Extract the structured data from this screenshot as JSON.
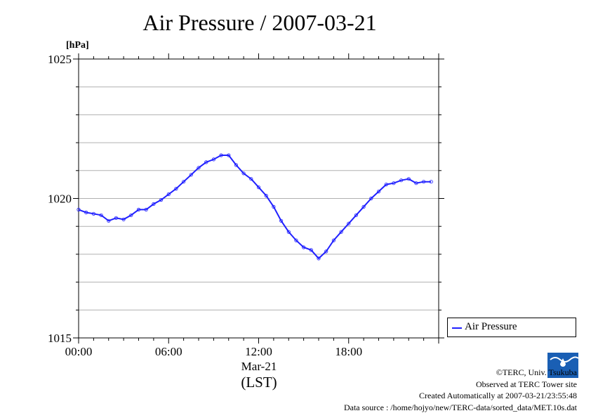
{
  "chart_data": {
    "type": "line",
    "title": "Air Pressure / 2007-03-21",
    "y_unit": "[hPa]",
    "ylim": [
      1015,
      1025
    ],
    "y_ticks": [
      1015,
      1020,
      1025
    ],
    "xlim_hours": [
      0,
      24
    ],
    "x_ticks": [
      {
        "hour": 0,
        "label": "00:00"
      },
      {
        "hour": 6,
        "label": "06:00"
      },
      {
        "hour": 12,
        "label": "12:00"
      },
      {
        "hour": 18,
        "label": "18:00"
      }
    ],
    "x_sublabel": "Mar-21",
    "x_unit": "(LST)",
    "grid": true,
    "legend_position": "right",
    "series": [
      {
        "name": "Air Pressure",
        "color": "#2020ff",
        "x_hours": [
          0.0,
          0.5,
          1.0,
          1.5,
          2.0,
          2.5,
          3.0,
          3.5,
          4.0,
          4.5,
          5.0,
          5.5,
          6.0,
          6.5,
          7.0,
          7.5,
          8.0,
          8.5,
          9.0,
          9.5,
          10.0,
          10.5,
          11.0,
          11.5,
          12.0,
          12.5,
          13.0,
          13.5,
          14.0,
          14.5,
          15.0,
          15.5,
          16.0,
          16.5,
          17.0,
          17.5,
          18.0,
          18.5,
          19.0,
          19.5,
          20.0,
          20.5,
          21.0,
          21.5,
          22.0,
          22.5,
          23.0,
          23.5
        ],
        "values": [
          1019.6,
          1019.5,
          1019.45,
          1019.4,
          1019.2,
          1019.3,
          1019.25,
          1019.4,
          1019.6,
          1019.6,
          1019.8,
          1019.95,
          1020.15,
          1020.35,
          1020.6,
          1020.85,
          1021.1,
          1021.3,
          1021.4,
          1021.55,
          1021.55,
          1021.2,
          1020.9,
          1020.7,
          1020.4,
          1020.1,
          1019.7,
          1019.2,
          1018.8,
          1018.5,
          1018.25,
          1018.15,
          1017.85,
          1018.1,
          1018.5,
          1018.8,
          1019.1,
          1019.4,
          1019.7,
          1020.0,
          1020.25,
          1020.5,
          1020.55,
          1020.65,
          1020.7,
          1020.55,
          1020.6,
          1020.6
        ]
      }
    ]
  },
  "credits": {
    "copyright": "©TERC, Univ. Tsukuba",
    "observed": "Observed at TERC Tower site",
    "created": "Created Automatically at 2007-03-21/23:55:48",
    "source": "Data source : /home/hojyo/new/TERC-data/sorted_data/MET.10s.dat",
    "logo_text": "TERC"
  }
}
